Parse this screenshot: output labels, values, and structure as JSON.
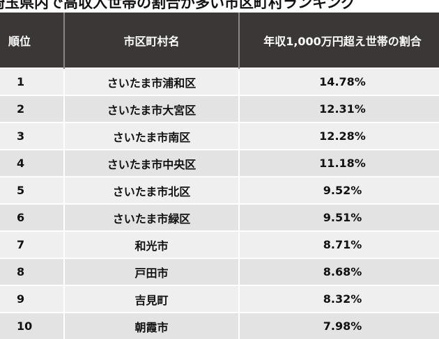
{
  "title": "埼玉県内で高収入世帯の割合が多い市区町村ランキング",
  "headers": [
    "順位",
    "市区町村名",
    "年収1,000万円超え世帯の割合"
  ],
  "rows": [
    {
      "rank": "1",
      "name": "さいたま市浦和区",
      "pct": "14.78%"
    },
    {
      "rank": "2",
      "name": "さいたま市大宮区",
      "pct": "12.31%"
    },
    {
      "rank": "3",
      "name": "さいたま市南区",
      "pct": "12.28%"
    },
    {
      "rank": "4",
      "name": "さいたま市中央区",
      "pct": "11.18%"
    },
    {
      "rank": "5",
      "name": "さいたま市北区",
      "pct": "9.52%"
    },
    {
      "rank": "6",
      "name": "さいたま市緑区",
      "pct": "9.51%"
    },
    {
      "rank": "7",
      "name": "和光市",
      "pct": "8.71%"
    },
    {
      "rank": "8",
      "name": "戸田市",
      "pct": "8.68%"
    },
    {
      "rank": "9",
      "name": "吉見町",
      "pct": "8.32%"
    },
    {
      "rank": "10",
      "name": "朝霞市",
      "pct": "7.98%"
    }
  ]
}
